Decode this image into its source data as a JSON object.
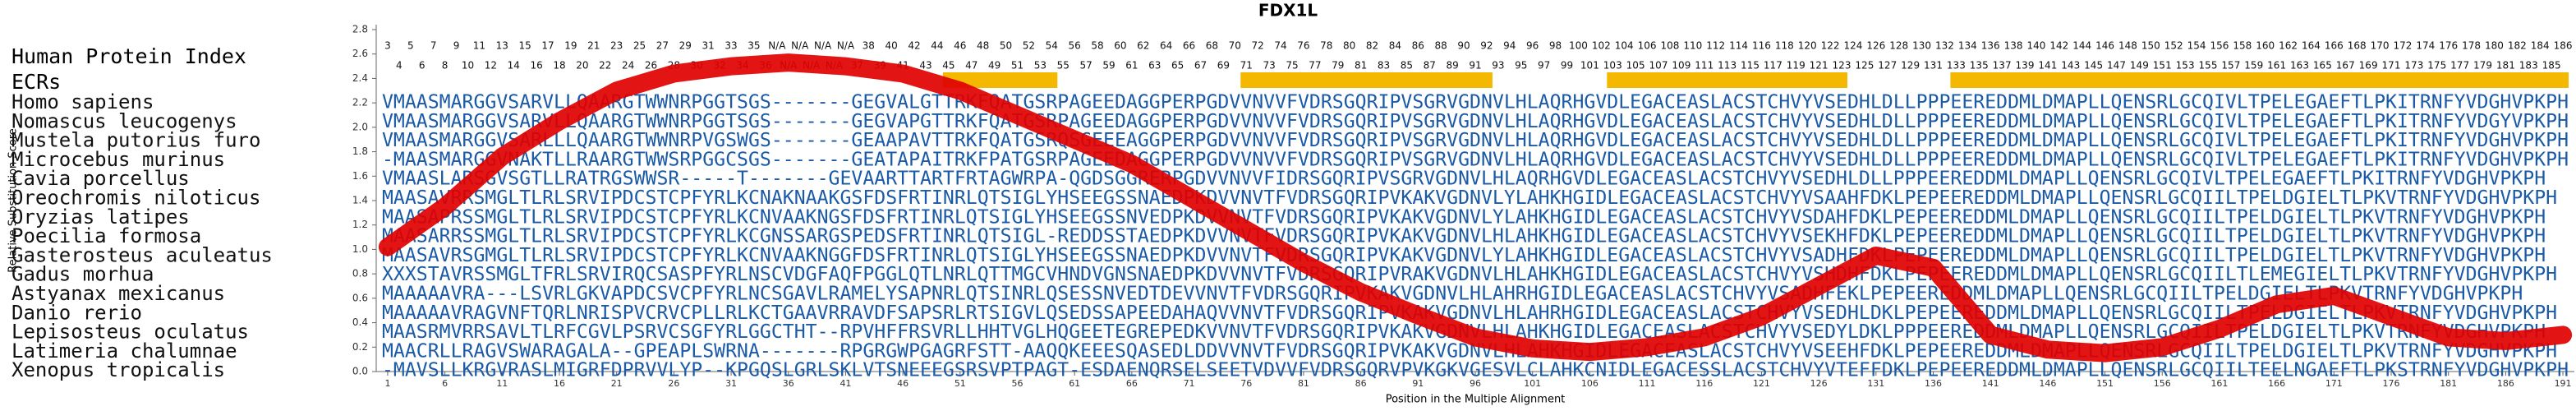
{
  "chart_data": {
    "type": "line",
    "title": "FDX1L",
    "xlabel": "Position in the Multiple Alignment",
    "ylabel": "Relative Substitution Score",
    "row_header": "Human Protein Index",
    "ecr_label": "ECRs",
    "color": "#e00000",
    "ecr_color": "#f5b800",
    "sequence_color": "#1a5aa6",
    "xlim": [
      0,
      192
    ],
    "ylim": [
      0,
      2.8
    ],
    "xticks": [
      1,
      6,
      11,
      16,
      21,
      26,
      31,
      36,
      41,
      46,
      51,
      56,
      61,
      66,
      71,
      76,
      81,
      86,
      91,
      96,
      101,
      106,
      111,
      116,
      121,
      126,
      131,
      136,
      141,
      146,
      151,
      156,
      161,
      166,
      171,
      176,
      181,
      186,
      191
    ],
    "yticks": [
      {
        "value": 0,
        "label": "0.0"
      },
      0.2,
      0.4,
      0.6,
      0.8,
      {
        "value": 1,
        "label": "1.0"
      },
      1.2,
      1.4,
      1.6,
      1.8,
      {
        "value": 2,
        "label": "2.0"
      },
      2.2,
      2.4,
      2.6,
      2.8
    ],
    "x": [
      1,
      6,
      11,
      16,
      21,
      26,
      31,
      36,
      41,
      46,
      51,
      56,
      61,
      66,
      71,
      76,
      81,
      86,
      91,
      96,
      101,
      106,
      111,
      116,
      121,
      126,
      131,
      136,
      141,
      146,
      151,
      156,
      161,
      166,
      171,
      176,
      181,
      186,
      191
    ],
    "values": [
      1.02,
      1.35,
      1.76,
      2.05,
      2.3,
      2.44,
      2.5,
      2.53,
      2.5,
      2.44,
      2.3,
      2.1,
      1.9,
      1.7,
      1.43,
      1.16,
      0.89,
      0.65,
      0.46,
      0.28,
      0.19,
      0.16,
      0.2,
      0.28,
      0.45,
      0.7,
      0.95,
      0.85,
      0.3,
      0.18,
      0.15,
      0.2,
      0.35,
      0.55,
      0.62,
      0.45,
      0.28,
      0.25,
      0.3
    ],
    "human_index": [
      3,
      4,
      5,
      6,
      7,
      8,
      9,
      10,
      11,
      12,
      13,
      14,
      15,
      16,
      17,
      18,
      19,
      20,
      21,
      22,
      23,
      24,
      25,
      26,
      27,
      28,
      29,
      30,
      31,
      32,
      33,
      34,
      35,
      36,
      "N/A",
      "N/A",
      "N/A",
      "N/A",
      "N/A",
      "N/A",
      "N/A",
      37,
      38,
      39,
      40,
      41,
      42,
      43,
      44,
      45,
      46,
      47,
      48,
      49,
      50,
      51,
      52,
      53,
      54,
      55,
      56,
      57,
      58,
      59,
      60,
      61,
      62,
      63,
      64,
      65,
      66,
      67,
      68,
      69,
      70,
      71,
      72,
      73,
      74,
      75,
      76,
      77,
      78,
      79,
      80,
      81,
      82,
      83,
      84,
      85,
      86,
      87,
      88,
      89,
      90,
      91,
      92,
      93,
      94,
      95,
      96,
      97,
      98,
      99,
      100,
      101,
      102,
      103,
      104,
      105,
      106,
      107,
      108,
      109,
      110,
      111,
      112,
      113,
      114,
      115,
      116,
      117,
      118,
      119,
      120,
      121,
      122,
      123,
      124,
      125,
      126,
      127,
      128,
      129,
      130,
      131,
      132,
      133,
      134,
      135,
      136,
      137,
      138,
      139,
      140,
      141,
      142,
      143,
      144,
      145,
      146,
      147,
      148,
      149,
      150,
      151,
      152,
      153,
      154,
      155,
      156,
      157,
      158,
      159,
      160,
      161,
      162,
      163,
      164,
      165,
      166,
      167,
      168,
      169,
      170,
      171,
      172,
      173,
      174,
      175,
      176,
      177,
      178,
      179,
      180,
      181,
      182,
      183,
      184,
      185,
      186
    ],
    "ecrs": [
      [
        50,
        59
      ],
      [
        76,
        97
      ],
      [
        108,
        128
      ],
      [
        138,
        191
      ]
    ],
    "species": [
      {
        "name": "Homo sapiens",
        "sequence": "VMAASMARGGVSARVLLQAARGTWWNRPGGTSGS-------GEGVALGTTRKFQATGSRPAGEEDAGGPERPGDVVNVVFVDRSGQRIPVSGRVGDNVLHLAQRHGVDLEGACEASLACSTCHVYVSEDHLDLLPPPEEREDDMLDMAPLLQENSRLGCQIVLTPELEGAEFTLPKITRNFYVDGHVPKPH"
      },
      {
        "name": "Nomascus leucogenys",
        "sequence": "VMAASMARGGVSARVLLQAARGTWWNRPGGTSGS-------GEGVAPGTTRKFQATGSRPAGEEDAGGPERPGDVVNVVFVDRSGQRIPVSGRVGDNVLHLAQRHGVDLEGACEASLACSTCHVYVSEDHLDLLPPPEEREDDMLDMAPLLQENSRLGCQIVLTPELEGAEFTLPKITRNFYVDGYVPKPH"
      },
      {
        "name": "Mustela putorius furo",
        "sequence": "VMAASMARGGVSARLLLQAARGTWWNRPVGSWGS-------GEAAPAVTTRKFQATGSRQSGEEEAGGPERPGDVVNVVFVDRSGQRIPVSGRVGDNVLHLAQRHGVDLEGACEASLACSTCHVYVSEDHLDLLPPPEEREDDMLDMAPLLQENSRLGCQIVLTPELEGAEFTLPKITRNFYVDGHVPKPH"
      },
      {
        "name": "Microcebus murinus",
        "sequence": "-MAASMARGGVNAKTLLRAARGTWWSRPGGCSGS-------GEATAPAITRKFPATGSRPAGEEDAGGPERPGDVVNVVFVDRSGQRIPVSGRVGDNVLHLAQRHGVDLEGACEASLACSTCHVYVSEDHLDLLPPPEEREDDMLDMAPLLQENSRLGCQIVLTPELEGAEFTLPKITRNFYVDGHVPKPH"
      },
      {
        "name": "Cavia porcellus",
        "sequence": "VMAASLARSGVSGTLLRATRGSWWSR-----T-------GEVAARTTARTFRTAGWRPA-QGDSGGRERPGDVVNVVFIDRSGQRIPVSGRVGDNVLHLAQRHGVDLEGACEASLACSTCHVYVSEDHLDLLPPPEEREDDMLDMAPLLQENSRLGCQIVLTPELEGAEFTLPKITRNFYVDGHVPKPH"
      },
      {
        "name": "Oreochromis niloticus",
        "sequence": "MAASAVRRSMGLTLRLSRVIPDCSTCPFYRLKCNAKNAAKGSFDSFRTINRLQTSIGLYHSEEGSSNAEDPKDVVNVTFVDRSGQRIPVKAKVGDNVLYLAHKHGIDLEGACEASLACSTCHVYVSAAHFDKLPEPEEREDDMLDMAPLLQENSRLGCQIILTPELDGIELTLPKVTRNFYVDGHVPKPH"
      },
      {
        "name": "Oryzias latipes",
        "sequence": "MAASAPRSSMGLTLRLSRVIPDCSTCPFYRLKCNVAAKNGSFDSFRTINRLQTSIGLYHSEEGSSNVEDPKDVVNVTFVDRSGQRIPVKAKVGDNVLYLAHKHGIDLEGACEASLACSTCHVYVSDAHFDKLPEPEEREDDMLDMAPLLQENSRLGCQIILTPELDGIELTLPKVTRNFYVDGHVPKPH"
      },
      {
        "name": "Poecilia formosa",
        "sequence": "MAASARRSSMGLTLRLSRVIPDCSTCPFYRLKCGNSSARGSPEDSFRTINRLQTSIGL-REDDSSTAEDPKDVVNVTFVDRSGQRIPVKAKVGDNVLHLAHKHGIDLEGACEASLACSTCHVYVSEKHFDKLPEPEEREDDMLDMAPLLQENSRLGCQIILTPELDGIELTLPKVTRNFYVDGHVPKPH"
      },
      {
        "name": "Gasterosteus aculeatus",
        "sequence": "MAASAVRSGMGLTLRLSRVIPDCSTCPFYRLKCNVAAKNGGFDSFRTINRLQTSIGLYHSEEGSSNAEDPKDVVNVTFVDRSGQRIPVKAKVGDNVLYLAHKHGIDLEGACEASLACSTCHVYVSADHFDKLPEPEEREDDMLDMAPLLQENSRLGCQIILTPELDGIELTLPKVTRNFYVDGHVPKPH"
      },
      {
        "name": "Gadus morhua",
        "sequence": "XXXSTAVRSSMGLTFRLSRVIRQCSASPFYRLNSCVDGFAQFPGGLQTLNRLQTTMGCVHNDVGNSNAEDPKDVVNVTFVDRSGQRIPVRAKVGDNVLHLAHKHGIDLEGACEASLACSTCHVYVSHDHFDKLPEPEEREDDMLDMAPLLQENSRLGCQIILTLEMEGIELTLPKVTRNFYVDGHVPKPH"
      },
      {
        "name": "Astyanax mexicanus",
        "sequence": "MAAAAAVRA---LSVRLGKVAPDCSVCPFYRLNCSGAVLRAMELYSAPNRLQTSINRLQSESSNVEDTDEVVNVTFVDRSGQRIPVKAKVGDNVLHLAHRHGIDLEGACEASLACSTCHVYVSADHFEKLPEPEEREDDMLDMAPLLQENSRLGCQIILTPELDGIELTLPKVTRNFYVDGHVPKPH"
      },
      {
        "name": "Danio rerio",
        "sequence": "MAAAAAVRAGVNFTQRLNRISPVCRVCPLLRLKCTGAAVRRAVDFSAPSRLRTSIGVLQSEDSSAPEEDAHAQVVNVTFVDRSGQRIPVKAKVGDNVLHLAHRHGIDLEGACEASLACSTCHVYVSEDHLDKLPEPEEREDDMLDMAPLLQENSRLGCQIILTPELDGIELTLPKVTRNFYVDGHVPKPH"
      },
      {
        "name": "Lepisosteus oculatus",
        "sequence": "MAASRMVRRSAVLTLRFCGVLPSRVCSGFYRLGGCTHT--RPVHFFRSVRLLHHTVGLHQGEETEGREPEDKVVNVTFVDRSGQRIPVKAKVGDNVLHLAHKHGIDLEGACEASLACSTCHVYVSEDYLDKLPPPEEREDDMLDMAPLLQENSRLGCQIILTPELDGIELTLPKVTRNFYVDGHVPKPH"
      },
      {
        "name": "Latimeria chalumnae",
        "sequence": "MAACRLLRAGVSWARAGALA--GPEAPLSWRNA-------RPGRGWPGAGRFSTT-AAQQKEEESQASEDLDDVVNVTFVDRSGQRIPVKAKVGDNVLHLAHKHGIDLEGACEASLACSTCHVYVSEEHFDKLPEPEEREDDMLDMAPLLQENSRLGCQIILTPELDGIELTLPKVTRNFYVDGHVPKPH"
      },
      {
        "name": "Xenopus tropicalis",
        "sequence": "-MAVSLLKRGVRASLMIGRFDPRVVLYP--KPGQSLGRLSKLVTSNEEEGSRSVPTPAGT-ESDAENQRSELSEETVDVVFVDRSGQRVPVKGKVGESVLCLAHKCNIDLEGACESSLACSTCHVYVTEFFDKLPEPEEREDDMLDMAPLLQENSRLGCQIILTEELNGAEFTLPKSTRNFYVDGHVPKPH"
      }
    ]
  }
}
